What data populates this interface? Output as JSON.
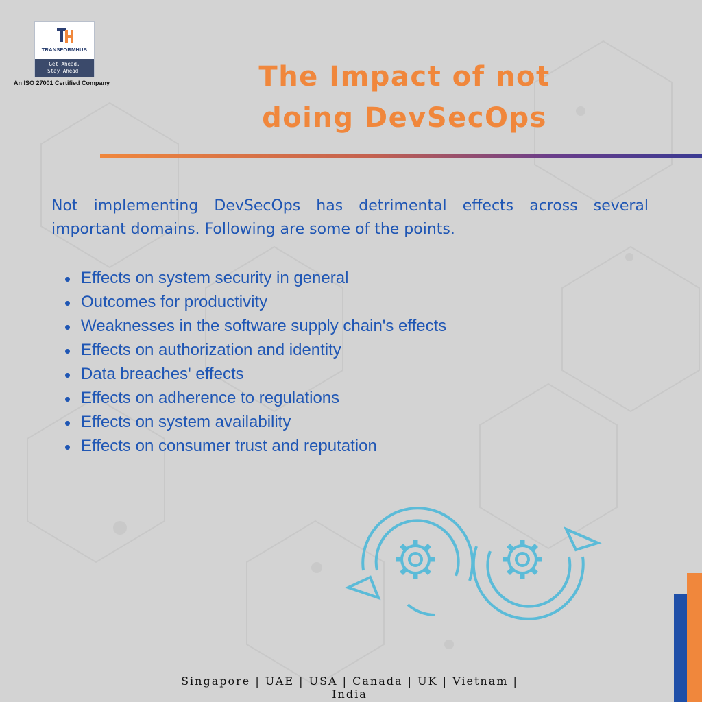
{
  "logo": {
    "brand": "TRANSFORMHUB",
    "tagline_line1": "Get Ahead.",
    "tagline_line2": "Stay Ahead."
  },
  "iso_text": "An ISO 27001 Certified Company",
  "title_line1": "The Impact of not",
  "title_line2": "doing DevSecOps",
  "intro": "Not implementing DevSecOps has detrimental effects across several important domains. Following are some of the points.",
  "points": [
    "Effects on system security in general",
    "Outcomes for productivity",
    "Weaknesses in the software supply chain's effects",
    "Effects on authorization and identity",
    "Data breaches' effects",
    "Effects on adherence to regulations",
    "Effects on system availability",
    "Effects on consumer trust and reputation"
  ],
  "footer": "Singapore | UAE | USA | Canada | UK | Vietnam | India",
  "colors": {
    "accent": "#f0873c",
    "text_blue": "#1f56b4",
    "icon_blue": "#5bbbd8",
    "background": "#d3d3d3"
  },
  "icons": [
    "logo-icon",
    "devops-cycle-icon",
    "gear-icon"
  ]
}
